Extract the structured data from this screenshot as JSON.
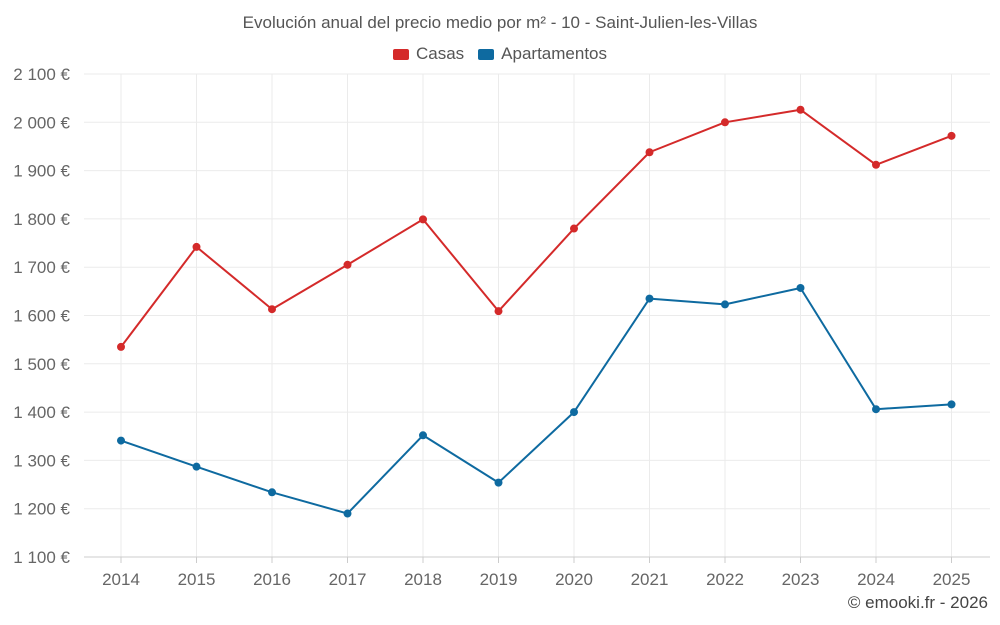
{
  "chart_data": {
    "type": "line",
    "title": "Evolución anual del precio medio por m² - 10 - Saint-Julien-les-Villas",
    "categories": [
      "2014",
      "2015",
      "2016",
      "2017",
      "2018",
      "2019",
      "2020",
      "2021",
      "2022",
      "2023",
      "2024",
      "2025"
    ],
    "series": [
      {
        "name": "Casas",
        "color": "#d42a2a",
        "values": [
          1535,
          1742,
          1613,
          1705,
          1799,
          1609,
          1780,
          1938,
          2000,
          2026,
          1912,
          1972
        ]
      },
      {
        "name": "Apartamentos",
        "color": "#0e6aa0",
        "values": [
          1341,
          1287,
          1234,
          1190,
          1352,
          1254,
          1400,
          1635,
          1623,
          1657,
          1406,
          1416
        ]
      }
    ],
    "ylim": [
      1100,
      2100
    ],
    "yticks": [
      1100,
      1200,
      1300,
      1400,
      1500,
      1600,
      1700,
      1800,
      1900,
      2000,
      2100
    ],
    "ytick_labels": [
      "1 100 €",
      "1 200 €",
      "1 300 €",
      "1 400 €",
      "1 500 €",
      "1 600 €",
      "1 700 €",
      "1 800 €",
      "1 900 €",
      "2 000 €",
      "2 100 €"
    ],
    "xlabel": "",
    "ylabel": "",
    "grid": true,
    "legend_position": "top-center"
  },
  "credit": "© emooki.fr - 2026"
}
